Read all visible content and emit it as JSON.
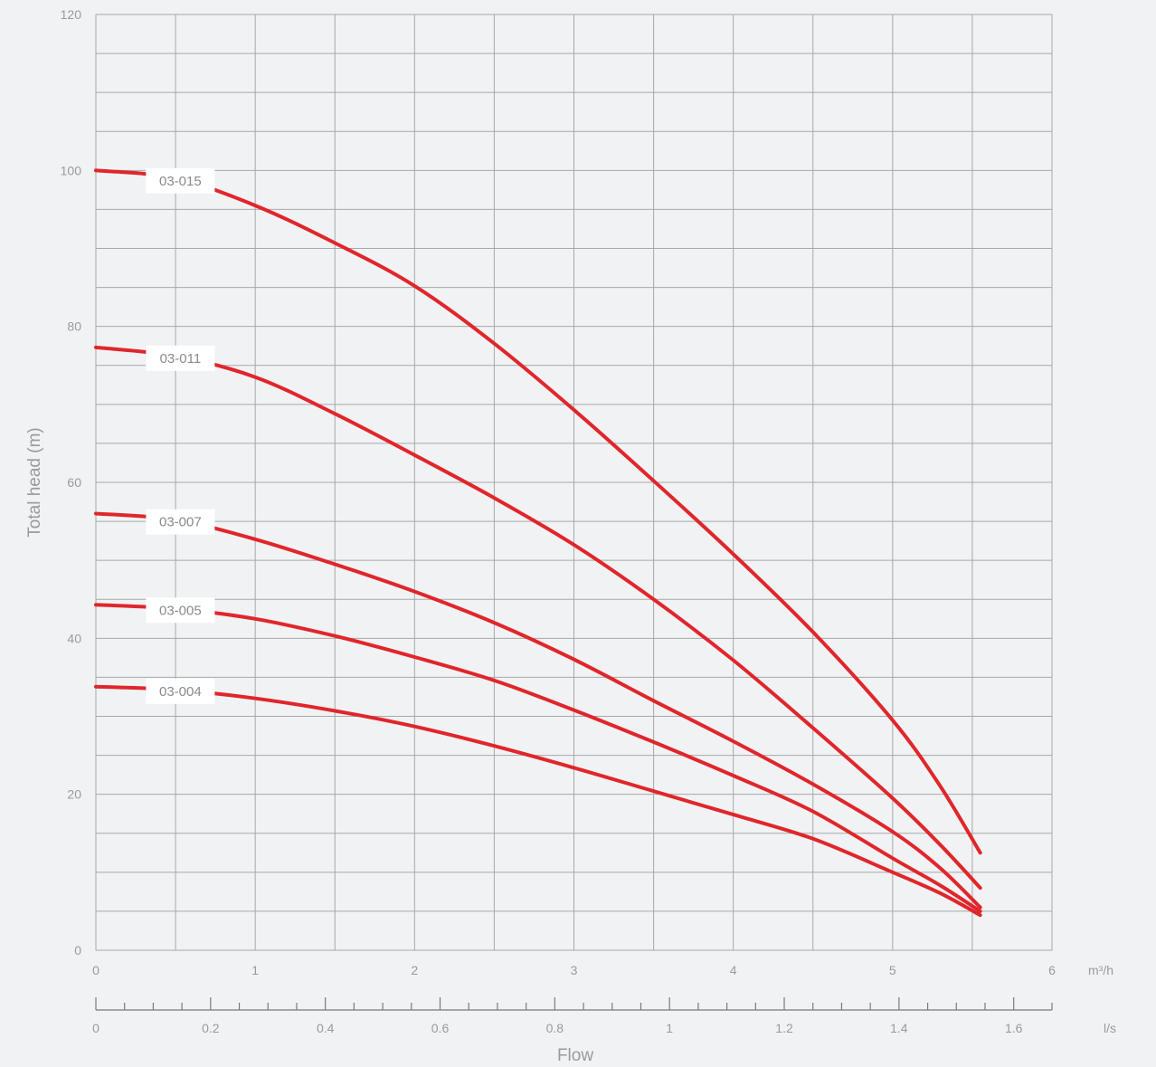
{
  "chart_data": {
    "type": "line",
    "xlabel": "Flow",
    "ylabel": "Total head (m)",
    "x_unit_primary": "m³/h",
    "x_unit_secondary": "l/s",
    "xlim": [
      0,
      6
    ],
    "ylim": [
      0,
      120
    ],
    "secondary_xlim": [
      0,
      1.6667
    ],
    "x_ticks": [
      "0",
      "1",
      "2",
      "3",
      "4",
      "5",
      "6"
    ],
    "y_ticks": [
      "0",
      "20",
      "40",
      "60",
      "80",
      "100",
      "120"
    ],
    "secondary_x_ticks": [
      "0",
      "0.2",
      "0.4",
      "0.6",
      "0.8",
      "1",
      "1.2",
      "1.4",
      "1.6"
    ],
    "grid": true,
    "line_color": "#e0262b",
    "series": [
      {
        "name": "03-015",
        "x": [
          0,
          0.5,
          1,
          1.5,
          2,
          2.5,
          3,
          3.5,
          4,
          4.5,
          5,
          5.3,
          5.55
        ],
        "y": [
          100,
          99,
          95.5,
          90.7,
          85.2,
          77.8,
          69.3,
          60.2,
          50.8,
          40.8,
          29.5,
          21,
          12.5
        ]
      },
      {
        "name": "03-011",
        "x": [
          0,
          0.5,
          1,
          1.5,
          2,
          2.5,
          3,
          3.5,
          4,
          4.5,
          5,
          5.3,
          5.55
        ],
        "y": [
          77.3,
          76.2,
          73.5,
          68.8,
          63.5,
          58,
          52,
          45,
          37.2,
          28.5,
          19.5,
          13.5,
          8
        ]
      },
      {
        "name": "03-007",
        "x": [
          0,
          0.5,
          1,
          1.5,
          2,
          2.5,
          3,
          3.5,
          4,
          4.5,
          5,
          5.3,
          5.55
        ],
        "y": [
          56,
          55.2,
          52.7,
          49.5,
          46,
          42,
          37.3,
          32,
          26.8,
          21.3,
          15.2,
          10.5,
          5.5
        ]
      },
      {
        "name": "03-005",
        "x": [
          0,
          0.5,
          1,
          1.5,
          2,
          2.5,
          3,
          3.5,
          4,
          4.5,
          5,
          5.3,
          5.55
        ],
        "y": [
          44.3,
          43.8,
          42.5,
          40.3,
          37.6,
          34.6,
          30.8,
          26.7,
          22.4,
          17.8,
          11.8,
          8.3,
          5
        ]
      },
      {
        "name": "03-004",
        "x": [
          0,
          0.5,
          1,
          1.5,
          2,
          2.5,
          3,
          3.5,
          4,
          4.5,
          5,
          5.3,
          5.55
        ],
        "y": [
          33.8,
          33.4,
          32.3,
          30.7,
          28.7,
          26.2,
          23.4,
          20.4,
          17.4,
          14.3,
          10,
          7.3,
          4.5
        ]
      }
    ]
  }
}
